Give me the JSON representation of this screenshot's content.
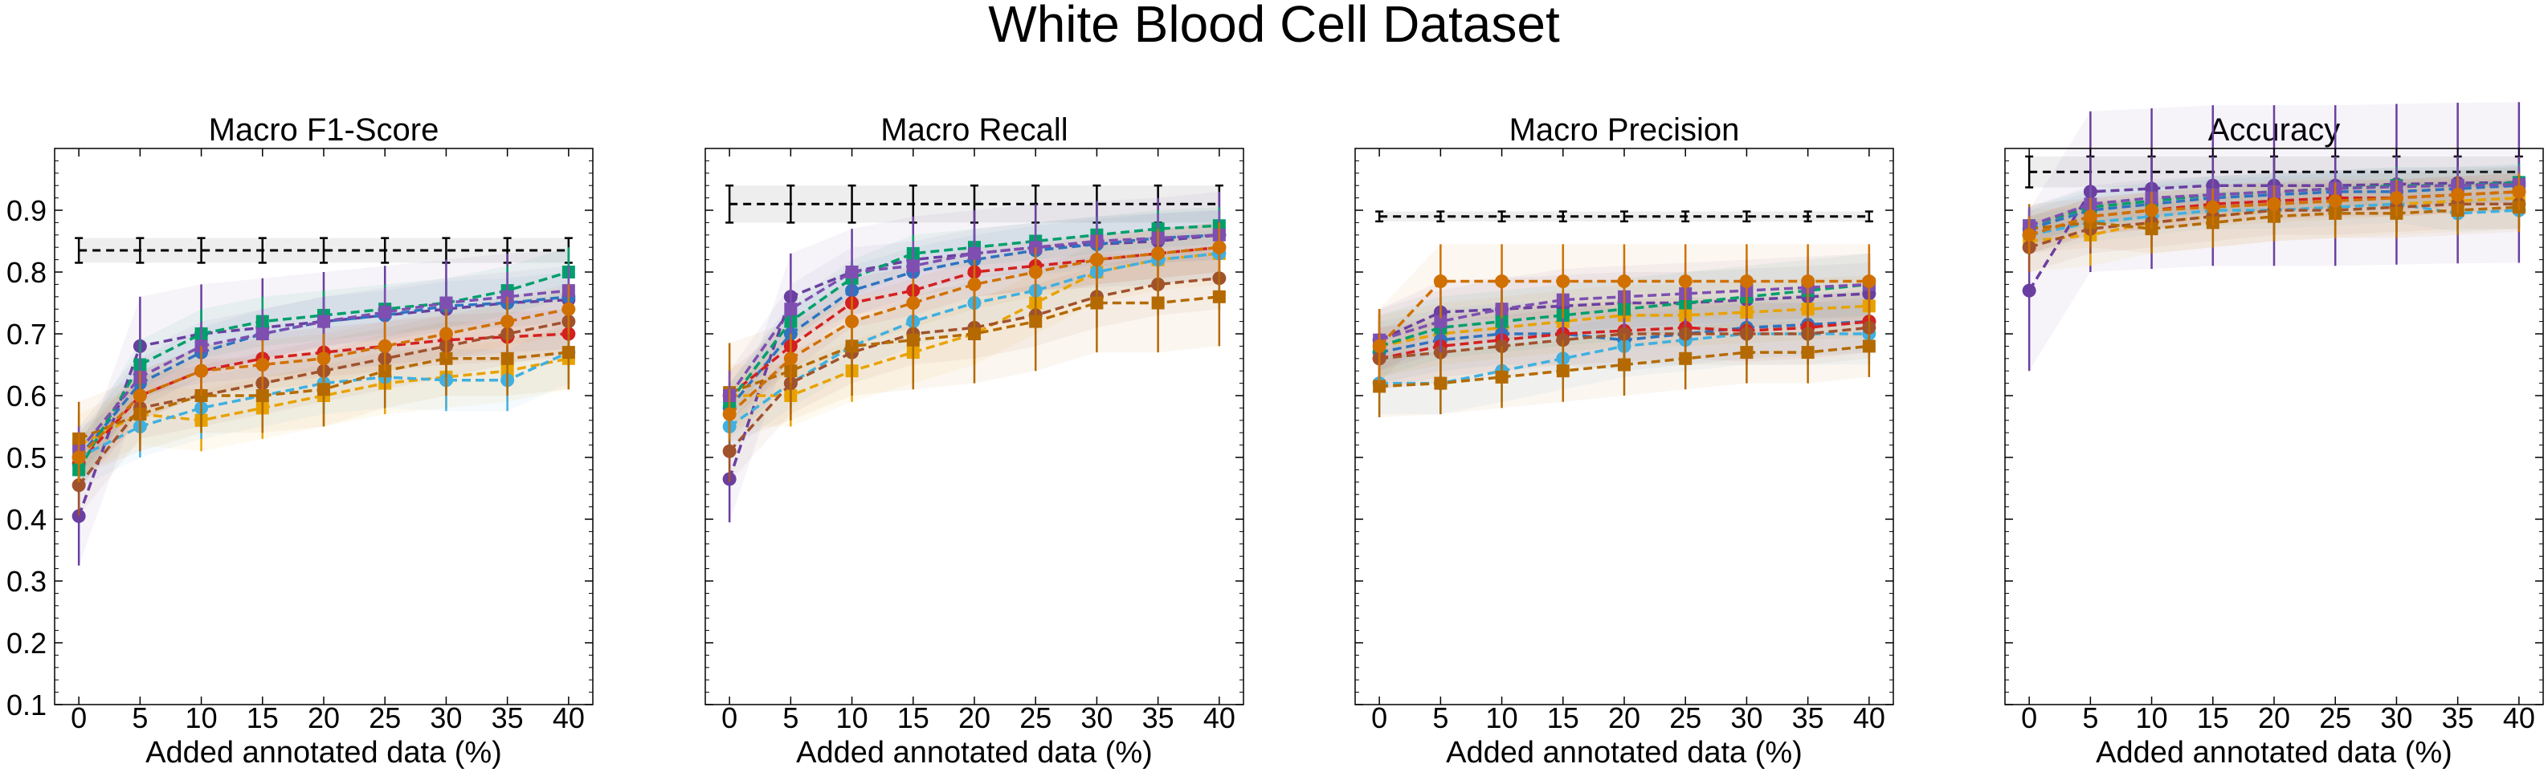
{
  "figure_title": "White Blood Cell Dataset",
  "x_ticks": [
    0,
    5,
    10,
    15,
    20,
    25,
    30,
    35,
    40
  ],
  "y_ticks": [
    "0.1",
    "0.2",
    "0.3",
    "0.4",
    "0.5",
    "0.6",
    "0.7",
    "0.8",
    "0.9"
  ],
  "xlabel": "Added annotated data (%)",
  "colors": [
    "#6a3fa0",
    "#e8a200",
    "#2e73c0",
    "#d42020",
    "#009f6b",
    "#3fb0e0",
    "#a0522d",
    "#b46a00",
    "#7e4fb0",
    "#d07000"
  ],
  "chart_data": [
    {
      "type": "line",
      "title": "Macro F1-Score",
      "ylim": [
        0.1,
        1.0
      ],
      "x": [
        0,
        5,
        10,
        15,
        20,
        25,
        30,
        35,
        40
      ],
      "reference": {
        "value": 0.835,
        "err": 0.02,
        "band": [
          0.815,
          0.855
        ]
      },
      "series": [
        {
          "values": [
            0.405,
            0.68,
            0.7,
            0.71,
            0.72,
            0.73,
            0.74,
            0.75,
            0.755
          ],
          "err": 0.08
        },
        {
          "values": [
            0.52,
            0.57,
            0.56,
            0.58,
            0.6,
            0.62,
            0.63,
            0.64,
            0.66
          ],
          "err": 0.05
        },
        {
          "values": [
            0.5,
            0.62,
            0.67,
            0.7,
            0.72,
            0.73,
            0.745,
            0.75,
            0.76
          ],
          "err": 0.04
        },
        {
          "values": [
            0.49,
            0.6,
            0.64,
            0.66,
            0.67,
            0.68,
            0.69,
            0.695,
            0.7
          ],
          "err": 0.04
        },
        {
          "values": [
            0.48,
            0.65,
            0.7,
            0.72,
            0.73,
            0.74,
            0.75,
            0.77,
            0.8
          ],
          "err": 0.04
        },
        {
          "values": [
            0.5,
            0.55,
            0.58,
            0.6,
            0.62,
            0.63,
            0.625,
            0.625,
            0.67
          ],
          "err": 0.05
        },
        {
          "values": [
            0.455,
            0.58,
            0.6,
            0.62,
            0.64,
            0.66,
            0.68,
            0.7,
            0.72
          ],
          "err": 0.05
        },
        {
          "values": [
            0.53,
            0.57,
            0.6,
            0.6,
            0.61,
            0.64,
            0.66,
            0.66,
            0.67
          ],
          "err": 0.06
        },
        {
          "values": [
            0.51,
            0.63,
            0.68,
            0.7,
            0.72,
            0.735,
            0.75,
            0.76,
            0.77
          ],
          "err": 0.04
        },
        {
          "values": [
            0.5,
            0.6,
            0.64,
            0.65,
            0.66,
            0.68,
            0.7,
            0.72,
            0.74
          ],
          "err": 0.04
        }
      ]
    },
    {
      "type": "line",
      "title": "Macro Recall",
      "ylim": [
        0.1,
        1.0
      ],
      "x": [
        0,
        5,
        10,
        15,
        20,
        25,
        30,
        35,
        40
      ],
      "reference": {
        "value": 0.91,
        "err": 0.03,
        "band": [
          0.88,
          0.94
        ]
      },
      "series": [
        {
          "values": [
            0.465,
            0.76,
            0.8,
            0.82,
            0.83,
            0.84,
            0.845,
            0.85,
            0.86
          ],
          "err": 0.07
        },
        {
          "values": [
            0.6,
            0.6,
            0.64,
            0.67,
            0.7,
            0.75,
            0.8,
            0.82,
            0.83
          ],
          "err": 0.05
        },
        {
          "values": [
            0.58,
            0.7,
            0.77,
            0.8,
            0.82,
            0.835,
            0.845,
            0.855,
            0.86
          ],
          "err": 0.04
        },
        {
          "values": [
            0.6,
            0.68,
            0.75,
            0.77,
            0.8,
            0.81,
            0.82,
            0.83,
            0.84
          ],
          "err": 0.04
        },
        {
          "values": [
            0.59,
            0.72,
            0.79,
            0.83,
            0.84,
            0.85,
            0.86,
            0.87,
            0.875
          ],
          "err": 0.03
        },
        {
          "values": [
            0.55,
            0.62,
            0.68,
            0.72,
            0.75,
            0.77,
            0.8,
            0.82,
            0.83
          ],
          "err": 0.04
        },
        {
          "values": [
            0.51,
            0.62,
            0.67,
            0.7,
            0.71,
            0.73,
            0.76,
            0.78,
            0.79
          ],
          "err": 0.05
        },
        {
          "values": [
            0.605,
            0.64,
            0.68,
            0.69,
            0.7,
            0.72,
            0.75,
            0.75,
            0.76
          ],
          "err": 0.08
        },
        {
          "values": [
            0.6,
            0.74,
            0.8,
            0.81,
            0.83,
            0.84,
            0.85,
            0.855,
            0.86
          ],
          "err": 0.04
        },
        {
          "values": [
            0.57,
            0.66,
            0.72,
            0.75,
            0.78,
            0.8,
            0.82,
            0.83,
            0.84
          ],
          "err": 0.04
        }
      ]
    },
    {
      "type": "line",
      "title": "Macro Precision",
      "ylim": [
        0.1,
        1.0
      ],
      "x": [
        0,
        5,
        10,
        15,
        20,
        25,
        30,
        35,
        40
      ],
      "reference": {
        "value": 0.89,
        "err": 0.008,
        "band": [
          0.882,
          0.898
        ]
      },
      "series": [
        {
          "values": [
            0.69,
            0.735,
            0.74,
            0.745,
            0.75,
            0.75,
            0.755,
            0.76,
            0.765
          ],
          "err": 0.05
        },
        {
          "values": [
            0.68,
            0.7,
            0.71,
            0.72,
            0.73,
            0.73,
            0.735,
            0.74,
            0.745
          ],
          "err": 0.05
        },
        {
          "values": [
            0.67,
            0.69,
            0.7,
            0.7,
            0.69,
            0.7,
            0.71,
            0.715,
            0.72
          ],
          "err": 0.05
        },
        {
          "values": [
            0.66,
            0.68,
            0.69,
            0.7,
            0.705,
            0.71,
            0.705,
            0.71,
            0.72
          ],
          "err": 0.05
        },
        {
          "values": [
            0.68,
            0.71,
            0.72,
            0.73,
            0.74,
            0.75,
            0.76,
            0.77,
            0.78
          ],
          "err": 0.05
        },
        {
          "values": [
            0.62,
            0.62,
            0.64,
            0.66,
            0.68,
            0.69,
            0.7,
            0.7,
            0.7
          ],
          "err": 0.05
        },
        {
          "values": [
            0.66,
            0.67,
            0.68,
            0.69,
            0.7,
            0.7,
            0.7,
            0.7,
            0.71
          ],
          "err": 0.05
        },
        {
          "values": [
            0.615,
            0.62,
            0.63,
            0.64,
            0.65,
            0.66,
            0.67,
            0.67,
            0.68
          ],
          "err": 0.05
        },
        {
          "values": [
            0.69,
            0.72,
            0.74,
            0.755,
            0.76,
            0.765,
            0.77,
            0.775,
            0.78
          ],
          "err": 0.05
        },
        {
          "values": [
            0.68,
            0.785,
            0.785,
            0.785,
            0.785,
            0.785,
            0.785,
            0.785,
            0.785
          ],
          "err": 0.06
        }
      ]
    },
    {
      "type": "line",
      "title": "Accuracy",
      "ylim": [
        0.1,
        1.0
      ],
      "x": [
        0,
        5,
        10,
        15,
        20,
        25,
        30,
        35,
        40
      ],
      "reference": {
        "value": 0.962,
        "err": 0.025,
        "band": [
          0.937,
          0.987
        ]
      },
      "series": [
        {
          "values": [
            0.77,
            0.93,
            0.935,
            0.94,
            0.94,
            0.94,
            0.942,
            0.944,
            0.945
          ],
          "err": 0.13
        },
        {
          "values": [
            0.85,
            0.86,
            0.88,
            0.89,
            0.9,
            0.905,
            0.91,
            0.915,
            0.92
          ],
          "err": 0.05
        },
        {
          "values": [
            0.87,
            0.9,
            0.91,
            0.92,
            0.925,
            0.93,
            0.93,
            0.935,
            0.94
          ],
          "err": 0.03
        },
        {
          "values": [
            0.86,
            0.89,
            0.9,
            0.91,
            0.915,
            0.92,
            0.92,
            0.925,
            0.93
          ],
          "err": 0.03
        },
        {
          "values": [
            0.875,
            0.905,
            0.915,
            0.925,
            0.93,
            0.935,
            0.94,
            0.94,
            0.945
          ],
          "err": 0.03
        },
        {
          "values": [
            0.86,
            0.88,
            0.89,
            0.9,
            0.9,
            0.905,
            0.91,
            0.895,
            0.9
          ],
          "err": 0.03
        },
        {
          "values": [
            0.84,
            0.87,
            0.88,
            0.89,
            0.9,
            0.9,
            0.905,
            0.91,
            0.91
          ],
          "err": 0.04
        },
        {
          "values": [
            0.87,
            0.88,
            0.87,
            0.88,
            0.89,
            0.895,
            0.895,
            0.9,
            0.905
          ],
          "err": 0.04
        },
        {
          "values": [
            0.875,
            0.91,
            0.92,
            0.925,
            0.93,
            0.935,
            0.938,
            0.94,
            0.942
          ],
          "err": 0.03
        },
        {
          "values": [
            0.86,
            0.89,
            0.9,
            0.905,
            0.91,
            0.915,
            0.92,
            0.925,
            0.93
          ],
          "err": 0.03
        }
      ]
    }
  ]
}
